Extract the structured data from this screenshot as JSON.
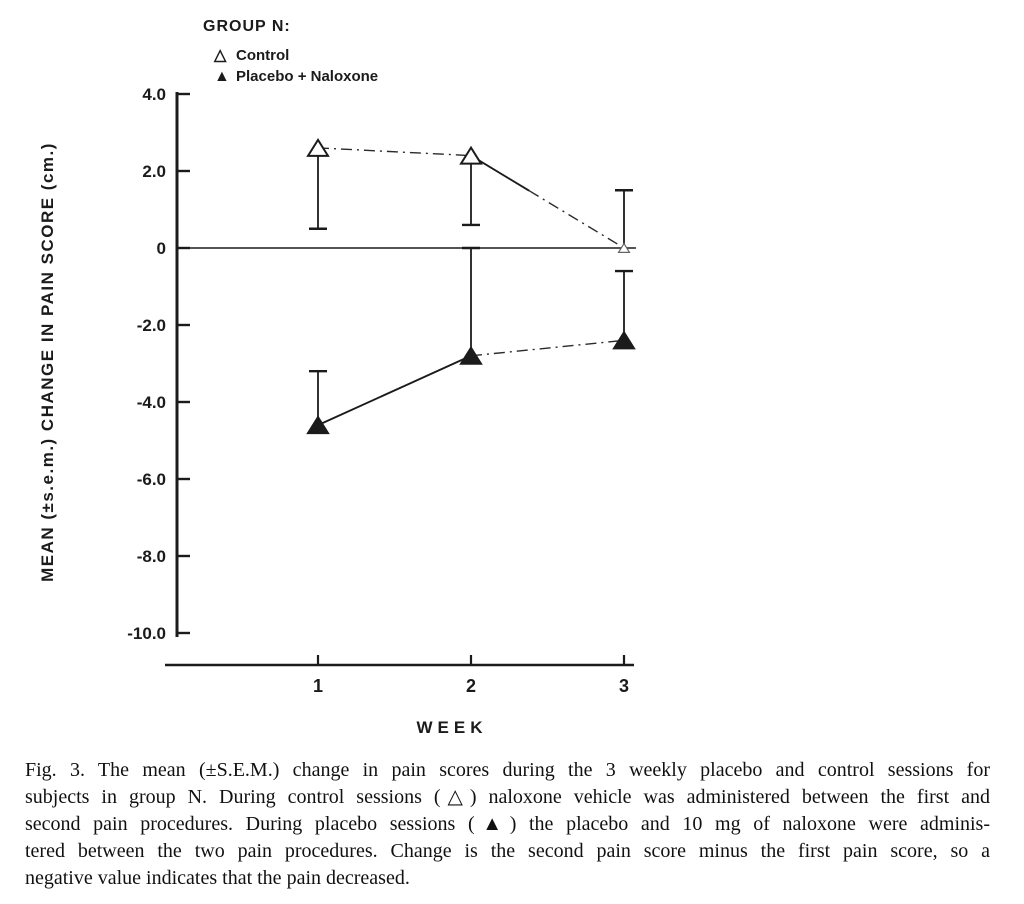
{
  "chart_data": {
    "type": "line",
    "title": "",
    "xlabel": "WEEK",
    "ylabel": "MEAN (±s.e.m.) CHANGE IN PAIN SCORE (cm.)",
    "x": [
      1,
      2,
      3
    ],
    "x_tick_labels": [
      "1",
      "2",
      "3"
    ],
    "y_ticks": [
      4.0,
      2.0,
      0,
      -2.0,
      -4.0,
      -6.0,
      -8.0,
      -10.0
    ],
    "y_tick_labels": [
      "4.0",
      "2.0",
      "0",
      "-2.0",
      "-4.0",
      "-6.0",
      "-8.0",
      "-10.0"
    ],
    "ylim": [
      -10.8,
      4.3
    ],
    "zero_line": true,
    "grid": false,
    "ink_color": "#1b1b1b",
    "legend": {
      "position": "top-left",
      "title": "GROUP N:",
      "entries": [
        {
          "glyph": "△",
          "label": "Control"
        },
        {
          "glyph": "▲",
          "label": "Placebo + Naloxone"
        }
      ]
    },
    "series": [
      {
        "name": "Control",
        "marker": "open-triangle",
        "segment_styles": [
          "dashdot",
          "mixed"
        ],
        "points": [
          {
            "week": 1,
            "mean": 2.6,
            "sem": 2.1,
            "bar_end": 0.5,
            "bar_direction": "down"
          },
          {
            "week": 2,
            "mean": 2.4,
            "sem": 1.8,
            "bar_end": 0.6,
            "bar_direction": "down"
          },
          {
            "week": 3,
            "mean": 0.0,
            "sem": 1.5,
            "bar_end": 1.5,
            "bar_direction": "up",
            "faint_marker": true
          }
        ]
      },
      {
        "name": "Placebo + Naloxone",
        "marker": "filled-triangle",
        "segment_styles": [
          "solid",
          "dashdot"
        ],
        "points": [
          {
            "week": 1,
            "mean": -4.6,
            "sem": 1.4,
            "bar_end": -3.2,
            "bar_direction": "up"
          },
          {
            "week": 2,
            "mean": -2.8,
            "sem": 2.8,
            "bar_end": 0.0,
            "bar_direction": "up"
          },
          {
            "week": 3,
            "mean": -2.4,
            "sem": 1.8,
            "bar_end": -0.6,
            "bar_direction": "up"
          }
        ]
      }
    ]
  },
  "caption": {
    "lines": [
      "Fig. 3. The mean (±S.E.M.) change in pain scores during the 3 weekly placebo and control sessions for",
      "subjects in group N. During control sessions (△) naloxone vehicle was administered between the first and",
      "second pain procedures. During placebo sessions (▲) the placebo and 10 mg of naloxone were adminis-",
      "tered between the two pain procedures. Change is the second pain score minus the first pain score, so a",
      "negative value indicates that the pain decreased."
    ]
  }
}
